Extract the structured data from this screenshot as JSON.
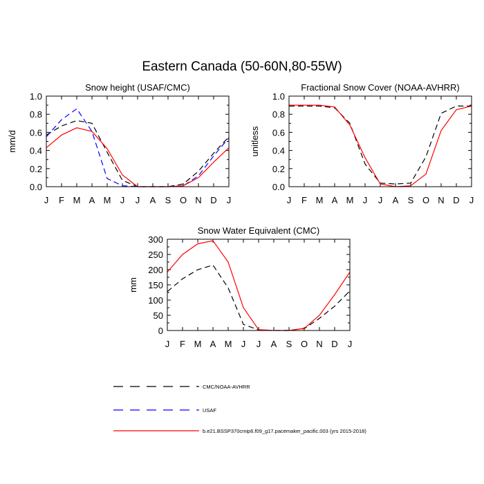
{
  "page_title": "Eastern Canada (50-60N,80-55W)",
  "colors": {
    "model": "#ff0000",
    "usaf": "#0000ff",
    "obs": "#000000"
  },
  "legend": {
    "entries": [
      {
        "label": "CMC/NOAA-AVHRR",
        "color": "#000000",
        "dash": "dashed"
      },
      {
        "label": "USAF",
        "color": "#0000ff",
        "dash": "dashed"
      },
      {
        "label": "b.e21.BSSP370cmip6.f09_g17.pacemaker_pacific.003 (yrs 2015-2018)",
        "color": "#ff0000",
        "dash": "solid"
      }
    ]
  },
  "chart_data": [
    {
      "type": "line",
      "title": "Snow height (USAF/CMC)",
      "xlabel": "",
      "ylabel": "mm/d",
      "categories": [
        "J",
        "F",
        "M",
        "A",
        "M",
        "J",
        "J",
        "A",
        "S",
        "O",
        "N",
        "D",
        "J"
      ],
      "ylim": [
        0,
        1.0
      ],
      "yticks": [
        "0.0",
        "0.2",
        "0.4",
        "0.6",
        "0.8",
        "1.0"
      ],
      "grid": false,
      "series": [
        {
          "name": "CMC/NOAA-AVHRR",
          "color": "#000000",
          "dash": "dashed",
          "values": [
            0.57,
            0.67,
            0.73,
            0.7,
            0.38,
            0.07,
            0.0,
            0.0,
            0.0,
            0.03,
            0.17,
            0.37,
            0.55
          ]
        },
        {
          "name": "USAF",
          "color": "#0000ff",
          "dash": "dashed",
          "values": [
            0.55,
            0.74,
            0.86,
            0.61,
            0.09,
            0.01,
            0.0,
            0.0,
            0.0,
            0.01,
            0.12,
            0.34,
            0.54
          ]
        },
        {
          "name": "b.e21.BSSP370cmip6.f09_g17.pacemaker_pacific.003 (yrs 2015-2018)",
          "color": "#ff0000",
          "dash": "solid",
          "values": [
            0.43,
            0.57,
            0.65,
            0.61,
            0.42,
            0.13,
            0.0,
            0.0,
            0.0,
            0.01,
            0.1,
            0.27,
            0.43
          ]
        }
      ]
    },
    {
      "type": "line",
      "title": "Fractional Snow Cover (NOAA-AVHRR)",
      "xlabel": "",
      "ylabel": "unitless",
      "categories": [
        "J",
        "F",
        "M",
        "A",
        "M",
        "J",
        "J",
        "A",
        "S",
        "O",
        "N",
        "D",
        "J"
      ],
      "ylim": [
        0,
        1.0
      ],
      "yticks": [
        "0.0",
        "0.2",
        "0.4",
        "0.6",
        "0.8",
        "1.0"
      ],
      "grid": false,
      "series": [
        {
          "name": "CMC/NOAA-AVHRR",
          "color": "#000000",
          "dash": "dashed",
          "values": [
            0.89,
            0.89,
            0.89,
            0.87,
            0.7,
            0.25,
            0.04,
            0.03,
            0.04,
            0.33,
            0.81,
            0.89,
            0.89
          ]
        },
        {
          "name": "b.e21.BSSP370cmip6.f09_g17.pacemaker_pacific.003 (yrs 2015-2018)",
          "color": "#ff0000",
          "dash": "solid",
          "values": [
            0.9,
            0.9,
            0.9,
            0.88,
            0.68,
            0.32,
            0.03,
            0.0,
            0.01,
            0.14,
            0.62,
            0.85,
            0.89
          ]
        }
      ]
    },
    {
      "type": "line",
      "title": "Snow Water Equivalent (CMC)",
      "xlabel": "",
      "ylabel": "mm",
      "categories": [
        "J",
        "F",
        "M",
        "A",
        "M",
        "J",
        "J",
        "A",
        "S",
        "O",
        "N",
        "D",
        "J"
      ],
      "ylim": [
        0,
        300
      ],
      "yticks": [
        "0",
        "50",
        "100",
        "150",
        "200",
        "250",
        "300"
      ],
      "grid": false,
      "series": [
        {
          "name": "CMC/NOAA-AVHRR",
          "color": "#000000",
          "dash": "dashed",
          "values": [
            128,
            170,
            200,
            215,
            140,
            20,
            2,
            0,
            1,
            6,
            40,
            80,
            130
          ]
        },
        {
          "name": "b.e21.BSSP370cmip6.f09_g17.pacemaker_pacific.003 (yrs 2015-2018)",
          "color": "#ff0000",
          "dash": "solid",
          "values": [
            192,
            250,
            285,
            295,
            225,
            75,
            3,
            0,
            0,
            7,
            50,
            118,
            192
          ]
        }
      ]
    }
  ]
}
